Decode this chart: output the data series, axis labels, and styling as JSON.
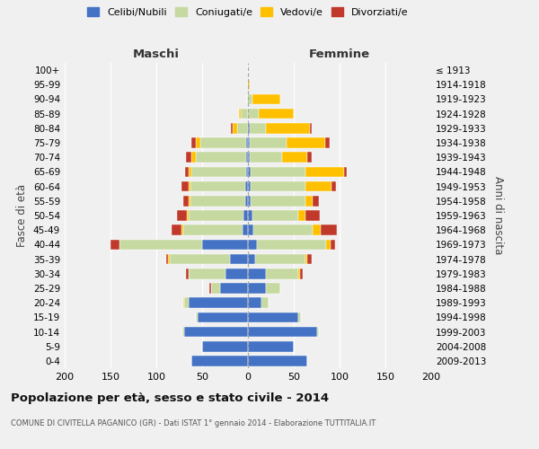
{
  "age_groups": [
    "0-4",
    "5-9",
    "10-14",
    "15-19",
    "20-24",
    "25-29",
    "30-34",
    "35-39",
    "40-44",
    "45-49",
    "50-54",
    "55-59",
    "60-64",
    "65-69",
    "70-74",
    "75-79",
    "80-84",
    "85-89",
    "90-94",
    "95-99",
    "100+"
  ],
  "birth_years": [
    "2009-2013",
    "2004-2008",
    "1999-2003",
    "1994-1998",
    "1989-1993",
    "1984-1988",
    "1979-1983",
    "1974-1978",
    "1969-1973",
    "1964-1968",
    "1959-1963",
    "1954-1958",
    "1949-1953",
    "1944-1948",
    "1939-1943",
    "1934-1938",
    "1929-1933",
    "1924-1928",
    "1919-1923",
    "1914-1918",
    "≤ 1913"
  ],
  "maschi_celibi": [
    62,
    50,
    70,
    55,
    65,
    30,
    25,
    20,
    50,
    6,
    5,
    3,
    3,
    2,
    2,
    2,
    0,
    0,
    0,
    0,
    0
  ],
  "maschi_coniugati": [
    0,
    0,
    2,
    2,
    5,
    10,
    40,
    65,
    90,
    65,
    60,
    60,
    60,
    60,
    55,
    50,
    12,
    8,
    1,
    0,
    0
  ],
  "maschi_vedovi": [
    0,
    0,
    0,
    0,
    1,
    0,
    0,
    2,
    0,
    2,
    2,
    2,
    2,
    3,
    5,
    5,
    5,
    2,
    0,
    0,
    0
  ],
  "maschi_divorziati": [
    0,
    0,
    0,
    0,
    0,
    2,
    3,
    2,
    10,
    10,
    10,
    6,
    8,
    4,
    6,
    5,
    2,
    0,
    0,
    0,
    0
  ],
  "femmine_nubili": [
    65,
    50,
    75,
    55,
    15,
    20,
    20,
    8,
    10,
    6,
    5,
    3,
    3,
    3,
    2,
    2,
    2,
    0,
    0,
    0,
    0
  ],
  "femmine_coniugate": [
    0,
    0,
    2,
    3,
    8,
    15,
    35,
    55,
    75,
    65,
    50,
    60,
    60,
    60,
    35,
    40,
    18,
    12,
    5,
    0,
    0
  ],
  "femmine_vedove": [
    0,
    0,
    0,
    0,
    0,
    0,
    2,
    2,
    5,
    8,
    8,
    8,
    28,
    42,
    28,
    42,
    48,
    38,
    30,
    2,
    0
  ],
  "femmine_divorziate": [
    0,
    0,
    0,
    0,
    0,
    0,
    3,
    5,
    5,
    18,
    15,
    6,
    5,
    3,
    5,
    5,
    2,
    0,
    0,
    0,
    0
  ],
  "colors": {
    "celibi": "#4472c4",
    "coniugati": "#c5d9a0",
    "vedovi": "#ffc000",
    "divorziati": "#c0392b"
  },
  "xlim": [
    -200,
    200
  ],
  "xticks": [
    -200,
    -150,
    -100,
    -50,
    0,
    50,
    100,
    150,
    200
  ],
  "xtick_labels": [
    "200",
    "150",
    "100",
    "50",
    "0",
    "50",
    "100",
    "150",
    "200"
  ],
  "title": "Popolazione per età, sesso e stato civile - 2014",
  "subtitle": "COMUNE DI CIVITELLA PAGANICO (GR) - Dati ISTAT 1° gennaio 2014 - Elaborazione TUTTITALIA.IT",
  "ylabel_left": "Fasce di età",
  "ylabel_right": "Anni di nascita",
  "maschi_label": "Maschi",
  "femmine_label": "Femmine",
  "legend_labels": [
    "Celibi/Nubili",
    "Coniugati/e",
    "Vedovi/e",
    "Divorziati/e"
  ],
  "bg_color": "#f0f0f0"
}
